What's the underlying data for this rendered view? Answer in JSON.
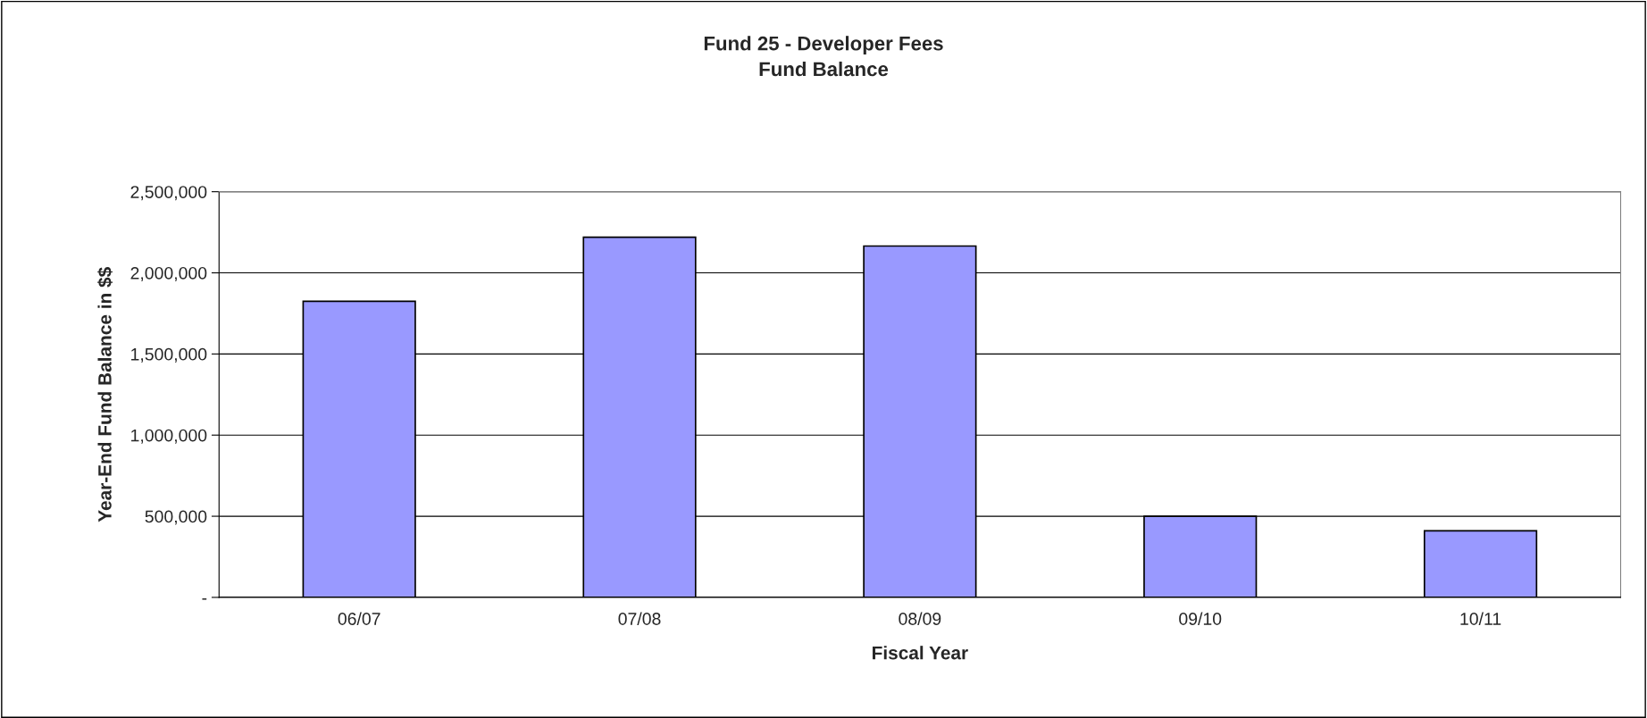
{
  "chart_data": {
    "type": "bar",
    "title": "Fund 25 - Developer Fees\nFund Balance",
    "xlabel": "Fiscal Year",
    "ylabel": "Year-End Fund Balance in $$",
    "categories": [
      "06/07",
      "07/08",
      "08/09",
      "09/10",
      "10/11"
    ],
    "values": [
      1825000,
      2220000,
      2165000,
      500000,
      410000
    ],
    "color": "#9999ff",
    "ylim": [
      0,
      2500000
    ],
    "yticks": [
      {
        "value": 0,
        "label": "-"
      },
      {
        "value": 500000,
        "label": "500,000"
      },
      {
        "value": 1000000,
        "label": "1,000,000"
      },
      {
        "value": 1500000,
        "label": "1,500,000"
      },
      {
        "value": 2000000,
        "label": "2,000,000"
      },
      {
        "value": 2500000,
        "label": "2,500,000"
      }
    ],
    "grid": "y"
  }
}
